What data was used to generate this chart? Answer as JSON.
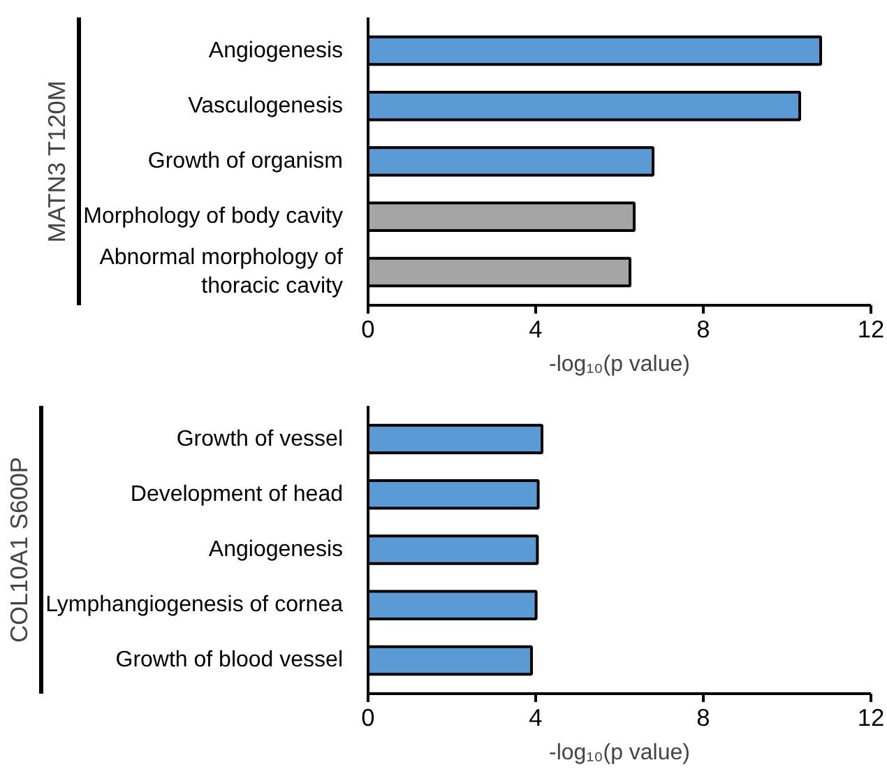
{
  "chart_data": [
    {
      "type": "bar",
      "orientation": "horizontal",
      "ylabel": "MATN3 T120M",
      "xlabel": "-log₁₀(p value)",
      "categories": [
        "Angiogenesis",
        "Vasculogenesis",
        "Growth of organism",
        "Morphology of body cavity",
        "Abnormal morphology of thoracic cavity"
      ],
      "values": [
        10.8,
        10.3,
        6.8,
        6.35,
        6.25
      ],
      "colors": [
        "#5b9bd5",
        "#5b9bd5",
        "#5b9bd5",
        "#a5a5a5",
        "#a5a5a5"
      ],
      "xlim": [
        0,
        12
      ],
      "xticks": [
        0,
        4,
        8,
        12
      ],
      "grid": false,
      "legend": false
    },
    {
      "type": "bar",
      "orientation": "horizontal",
      "ylabel": "COL10A1 S600P",
      "xlabel": "-log₁₀(p value)",
      "categories": [
        "Growth of vessel",
        "Development of head",
        "Angiogenesis",
        "Lymphangiogenesis of cornea",
        "Growth of blood vessel"
      ],
      "values": [
        4.15,
        4.06,
        4.04,
        4.01,
        3.9
      ],
      "colors": [
        "#5b9bd5",
        "#5b9bd5",
        "#5b9bd5",
        "#5b9bd5",
        "#5b9bd5"
      ],
      "xlim": [
        0,
        12
      ],
      "xticks": [
        0,
        4,
        8,
        12
      ],
      "grid": false,
      "legend": false
    }
  ]
}
